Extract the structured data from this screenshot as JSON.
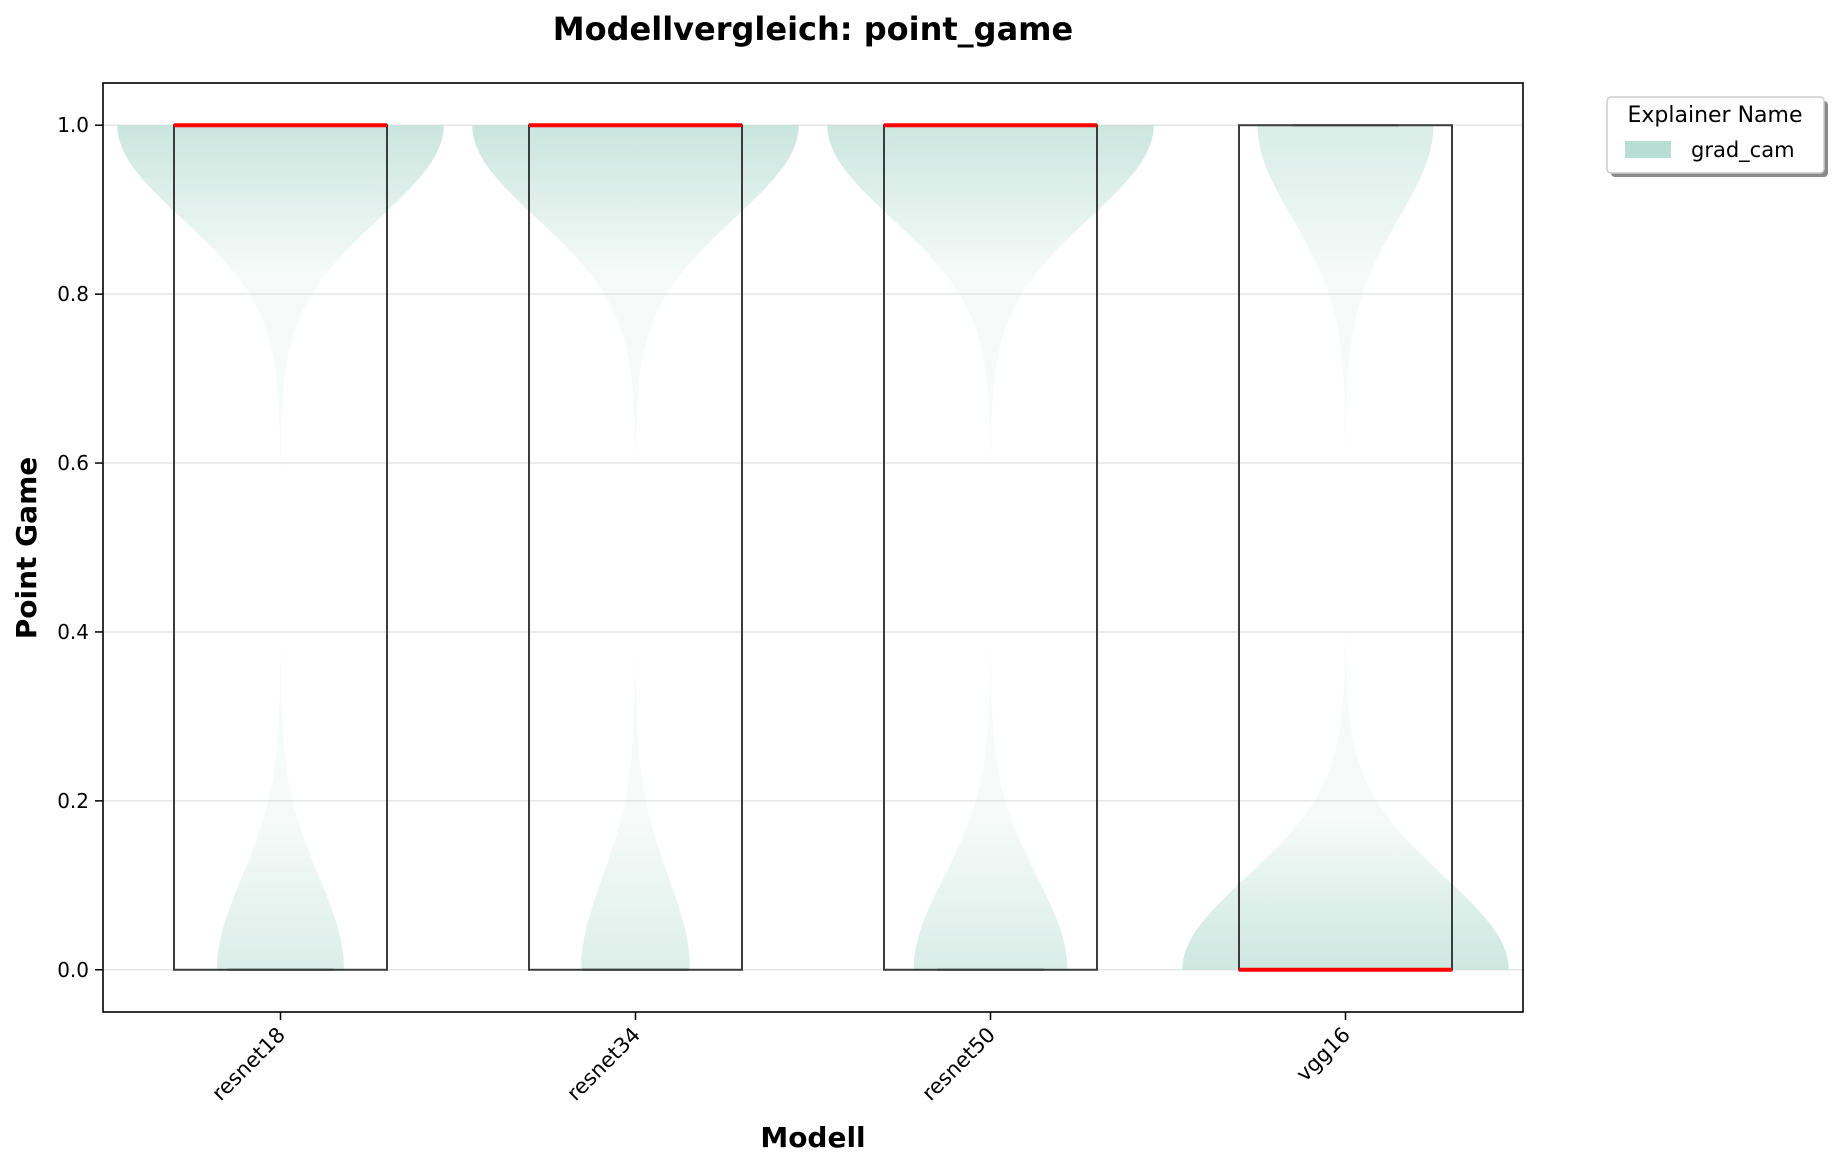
{
  "chart_data": {
    "type": "violin",
    "title": "Modellvergleich: point_game",
    "xlabel": "Modell",
    "ylabel": "Point Game",
    "categories": [
      "resnet18",
      "resnet34",
      "resnet50",
      "vgg16"
    ],
    "ylim": [
      -0.05,
      1.05
    ],
    "yticks": [
      0.0,
      0.2,
      0.4,
      0.6,
      0.8,
      1.0
    ],
    "ytick_labels": [
      "0.0",
      "0.2",
      "0.4",
      "0.6",
      "0.8",
      "1.0"
    ],
    "grid": true,
    "legend": {
      "title": "Explainer Name",
      "placement": "upper-right-outside",
      "entries": [
        {
          "name": "grad_cam",
          "color": "#b8ddd2"
        }
      ]
    },
    "series": [
      {
        "name": "grad_cam",
        "boxes": [
          {
            "category": "resnet18",
            "min": 0.0,
            "q1": 0.0,
            "median": 1.0,
            "q3": 1.0,
            "max": 1.0,
            "share_top": 0.72
          },
          {
            "category": "resnet34",
            "min": 0.0,
            "q1": 0.0,
            "median": 1.0,
            "q3": 1.0,
            "max": 1.0,
            "share_top": 0.75
          },
          {
            "category": "resnet50",
            "min": 0.0,
            "q1": 0.0,
            "median": 1.0,
            "q3": 1.0,
            "max": 1.0,
            "share_top": 0.68
          },
          {
            "category": "vgg16",
            "min": 0.0,
            "q1": 0.0,
            "median": 0.0,
            "q3": 1.0,
            "max": 1.0,
            "share_top": 0.35
          }
        ]
      }
    ],
    "colors": {
      "violin": "#b8ddd2",
      "box_edge": "#3c3c3c",
      "median": "#ff0000",
      "grid": "#e6e6e6"
    }
  }
}
